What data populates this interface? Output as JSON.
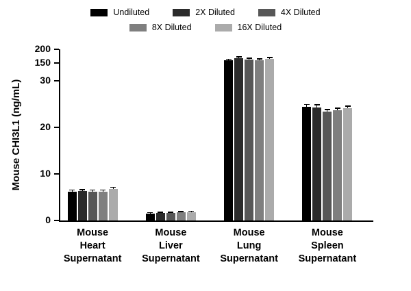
{
  "figure": {
    "background": "#ffffff"
  },
  "chart_data": {
    "type": "bar",
    "title": "",
    "xlabel": "",
    "ylabel": "Mouse CHI3L1 (ng/mL)",
    "categories": [
      [
        "Mouse",
        "Heart",
        "Supernatant"
      ],
      [
        "Mouse",
        "Liver",
        "Supernatant"
      ],
      [
        "Mouse",
        "Lung",
        "Supernatant"
      ],
      [
        "Mouse",
        "Spleen",
        "Supernatant"
      ]
    ],
    "series": [
      {
        "name": "Undiluted",
        "color": "#000000",
        "values": [
          6.2,
          1.5,
          159,
          24.4
        ],
        "errors": [
          0.3,
          0.15,
          4,
          0.5
        ]
      },
      {
        "name": "2X Diluted",
        "color": "#2b2b2b",
        "values": [
          6.3,
          1.6,
          168,
          24.3
        ],
        "errors": [
          0.3,
          0.15,
          4,
          0.5
        ]
      },
      {
        "name": "4X Diluted",
        "color": "#575757",
        "values": [
          6.2,
          1.6,
          163,
          23.4
        ],
        "errors": [
          0.3,
          0.15,
          4,
          0.4
        ]
      },
      {
        "name": "8X Diluted",
        "color": "#7f7f7f",
        "values": [
          6.2,
          1.7,
          161,
          23.7
        ],
        "errors": [
          0.3,
          0.15,
          4,
          0.4
        ]
      },
      {
        "name": "16X Diluted",
        "color": "#ababab",
        "values": [
          6.7,
          1.8,
          165,
          24.1
        ],
        "errors": [
          0.4,
          0.15,
          4,
          0.4
        ]
      }
    ],
    "legend_rows": [
      [
        "Undiluted",
        "2X Diluted",
        "4X Diluted"
      ],
      [
        "8X Diluted",
        "16X Diluted"
      ]
    ],
    "y_ticks": [
      0,
      10,
      20,
      30,
      150,
      200
    ],
    "axis_break": {
      "lower_max": 30,
      "upper_min": 150
    },
    "ylim": [
      0,
      200
    ],
    "legend_position": "top",
    "grid": false
  }
}
